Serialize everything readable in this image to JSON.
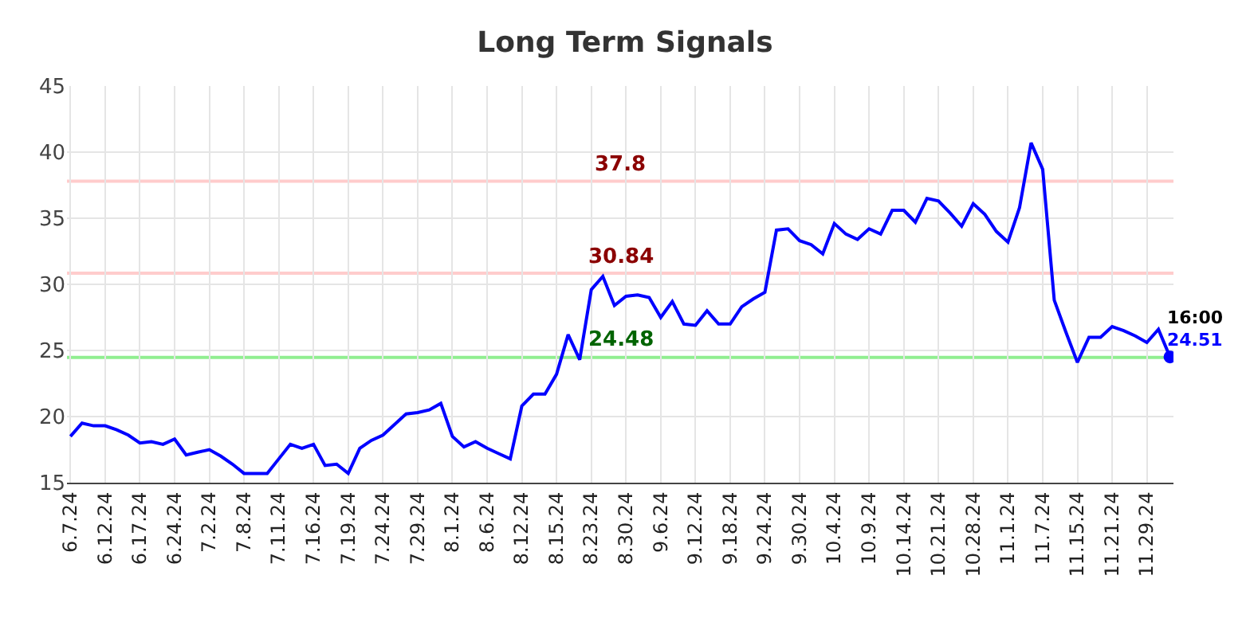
{
  "chart_data": {
    "type": "line",
    "title": "Long Term Signals",
    "categories": [
      "6.7.24",
      null,
      null,
      "6.12.24",
      null,
      null,
      "6.17.24",
      null,
      null,
      "6.24.24",
      null,
      null,
      "7.2.24",
      null,
      null,
      "7.8.24",
      null,
      null,
      "7.11.24",
      null,
      null,
      "7.16.24",
      null,
      null,
      "7.19.24",
      null,
      null,
      "7.24.24",
      null,
      null,
      "7.29.24",
      null,
      null,
      "8.1.24",
      null,
      null,
      "8.6.24",
      null,
      null,
      "8.12.24",
      null,
      null,
      "8.15.24",
      null,
      null,
      "8.23.24",
      null,
      null,
      "8.30.24",
      null,
      null,
      "9.6.24",
      null,
      null,
      "9.12.24",
      null,
      null,
      "9.18.24",
      null,
      null,
      "9.24.24",
      null,
      null,
      "9.30.24",
      null,
      null,
      "10.4.24",
      null,
      null,
      "10.9.24",
      null,
      null,
      "10.14.24",
      null,
      null,
      "10.21.24",
      null,
      null,
      "10.28.24",
      null,
      null,
      "11.1.24",
      null,
      null,
      "11.7.24",
      null,
      null,
      "11.15.24",
      null,
      null,
      "11.21.24",
      null,
      null,
      "11.29.24",
      null,
      null
    ],
    "series": [
      {
        "color": "#0000ff",
        "values": [
          18.5,
          19.5,
          19.3,
          19.3,
          19.0,
          18.6,
          18.0,
          18.1,
          17.9,
          18.3,
          17.1,
          17.3,
          17.5,
          17.0,
          16.4,
          15.7,
          15.7,
          15.7,
          16.8,
          17.9,
          17.6,
          17.9,
          16.3,
          16.4,
          15.7,
          17.6,
          18.2,
          18.6,
          19.4,
          20.2,
          20.3,
          20.5,
          21.0,
          18.5,
          17.7,
          18.1,
          17.6,
          17.2,
          16.8,
          20.8,
          21.7,
          21.7,
          23.2,
          26.2,
          24.3,
          29.6,
          30.6,
          28.4,
          29.1,
          29.2,
          29.0,
          27.5,
          28.7,
          27.0,
          26.9,
          28.0,
          27.0,
          27.0,
          28.3,
          28.9,
          29.4,
          34.1,
          34.2,
          33.3,
          33.0,
          32.3,
          34.6,
          33.8,
          33.4,
          34.2,
          33.8,
          35.6,
          35.6,
          34.7,
          36.5,
          36.3,
          35.4,
          34.4,
          36.1,
          35.3,
          34.0,
          33.2,
          35.8,
          40.7,
          38.7,
          28.8,
          26.4,
          24.1,
          26.0,
          26.0,
          26.8,
          26.5,
          26.1,
          25.6,
          26.6,
          24.51
        ]
      }
    ],
    "ylim": [
      15,
      45
    ],
    "yticks": [
      15,
      20,
      25,
      30,
      35,
      40,
      45
    ],
    "grid": true,
    "marker": "none",
    "line_style": "solid",
    "ref_lines": [
      {
        "axis": "y",
        "value": 37.8,
        "label": "37.8",
        "color": "#ffcccc"
      },
      {
        "axis": "y",
        "value": 30.84,
        "label": "30.84",
        "color": "#ffcccc"
      },
      {
        "axis": "y",
        "value": 24.48,
        "label": "24.48",
        "color": "#90ee90"
      }
    ],
    "annotations": [
      "16:00",
      "24.51"
    ]
  }
}
